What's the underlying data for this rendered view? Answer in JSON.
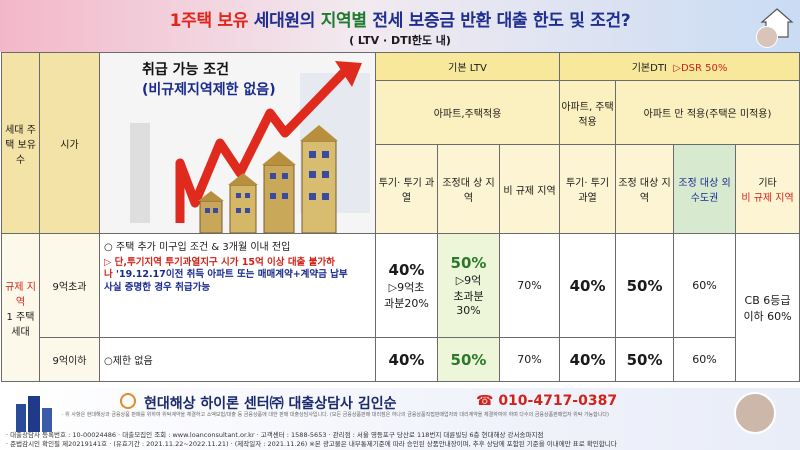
{
  "header": {
    "title_part1": "1주택 보유",
    "title_part2": " 세대원의 ",
    "title_part3": "지역별",
    "title_part4": " 전세 보증금 반환 대출 한도 및 조건?",
    "subtitle": "( LTV · DTI한도 내)"
  },
  "illustration": {
    "title": "취급 가능 조건",
    "subtitle": "(비규제지역제한 없음)"
  },
  "table": {
    "col_household": "세대 주택 보유 수",
    "col_price": "시가",
    "basic_ltv": "기본 LTV",
    "basic_dti": "기본DTI",
    "dsr": "▷DSR 50%",
    "apt_house_ltv": "아파트,주택적용",
    "apt_house_dti": "아파트, 주택 적용",
    "apt_only": "아파트 만 적용(주택은 미적용)",
    "sub_headers": {
      "ltv_speculative": "투기· 투기 과열",
      "ltv_adjust": "조정대 상 지역",
      "ltv_nonreg": "비 규제 지역",
      "dti_speculative": "투기· 투기 과열",
      "dti_adjust": "조정 대상 지역",
      "dti_capital": "조정 대상 외 수도권",
      "dti_other_label": "기타",
      "dti_other_sub": "비 규제 지역"
    },
    "regulated_label": "규제 지역",
    "one_house": "1 주택 세대",
    "row1": {
      "price": "9억초과",
      "cond1": "○ 주택 추가 미구입 조건 & 3개월 이내 전입",
      "cond2": "▷ 단,투기지역 투기과열지구 시가 15억 이상 대출 불가하",
      "cond3a": "나",
      "cond3b": " '19.12.17이전 취득 아파트 또는 매매계약+계약금 납부",
      "cond4": "사실 증명한 경우 취급가능",
      "ltv_spec_top": "40%",
      "ltv_spec_mid": "▷9억초",
      "ltv_spec_bot": "과분20%",
      "ltv_adj_top": "50%",
      "ltv_adj_mid": "▷9억",
      "ltv_adj_mid2": "초과분",
      "ltv_adj_bot": "30%",
      "ltv_nonreg": "70%",
      "dti_spec": "40%",
      "dti_adj": "50%",
      "dti_cap": "60%",
      "dti_other_top": "CB 6등급",
      "dti_other_bot": "이하 60%"
    },
    "row2": {
      "price": "9억이하",
      "cond": "○제한 없음",
      "ltv_spec": "40%",
      "ltv_adj": "50%",
      "ltv_nonreg": "70%",
      "dti_spec": "40%",
      "dti_adj": "50%",
      "dti_cap": "60%"
    }
  },
  "footer": {
    "center_name": "현대해상 하이론 센터㈜ 대출상담사 김인순",
    "phone": "☎ 010-4717-0387",
    "fine_print": "· 위 사항은 현대해상과 금융상품 판매를 위하여 위탁계약을 체결하고 소액보험/대출 등 금융상품에 대한 판매 대출상담사입니다. (모든 금융상품판매 대리점은 하나의 금융상품직접판매업자와 대리계약을 체결하여야 하며 다수의 금융상품판매업자 위탁 가능합니다)",
    "line1": "· 대출상담사 등록번호 : 10-00024486 · 대출모집인 조회 : www.loanconsultant.or.kr · 고객센터 : 1588-5653 · 관리점 : 서울 영등포구 당산로 118번지 대륜빌딩 6층 현대해상 강서송파지점",
    "line2": "· 준법감시인 확인필 제20219141호 · (유효기간 : 2021.11.22~2022.11.21) · (제작일자 : 2021.11.26) ※본 광고물은 내부통제기준에 따라 승인된 상품안내장이며, 추후 상담에 포함된 기준을 이내에만 표로 확인합니다"
  },
  "colors": {
    "title_blue": "#1f2f8f",
    "title_red": "#e0261a",
    "accent_red": "#d0231a",
    "header_yellow": "#f7e89c",
    "highlight_green": "#edf6d9"
  }
}
